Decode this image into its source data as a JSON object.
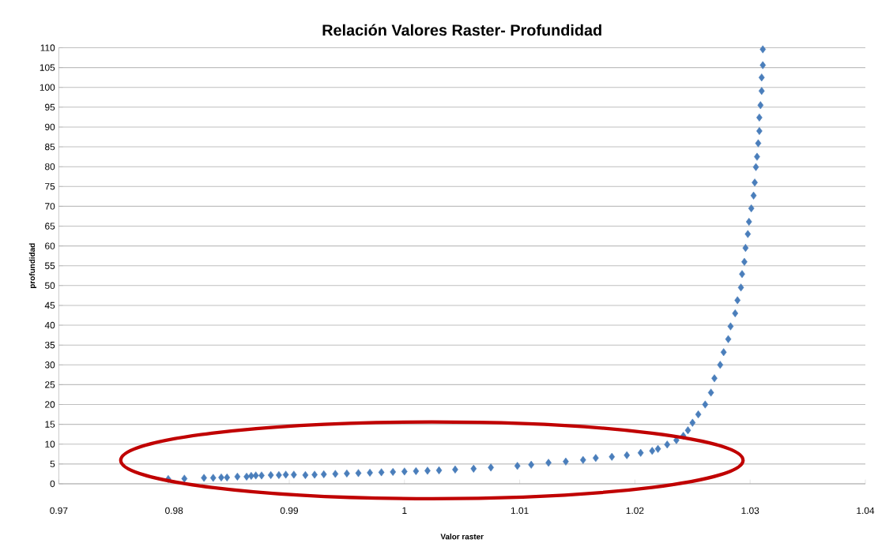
{
  "chart_data": {
    "type": "scatter",
    "title": "Relación Valores Raster- Profundidad",
    "xlabel": "Valor raster",
    "ylabel": "profundidad",
    "x": [
      0.9795,
      0.9809,
      0.9826,
      0.9834,
      0.9841,
      0.9846,
      0.9855,
      0.9863,
      0.9867,
      0.9871,
      0.9876,
      0.9884,
      0.9891,
      0.9897,
      0.9904,
      0.9914,
      0.9922,
      0.993,
      0.994,
      0.995,
      0.996,
      0.997,
      0.998,
      0.999,
      1.0,
      1.001,
      1.002,
      1.003,
      1.0044,
      1.006,
      1.0075,
      1.0098,
      1.011,
      1.0125,
      1.014,
      1.0155,
      1.0166,
      1.018,
      1.0193,
      1.0205,
      1.0215,
      1.022,
      1.0228,
      1.0236,
      1.0242,
      1.0246,
      1.025,
      1.0255,
      1.0261,
      1.0266,
      1.0269,
      1.0274,
      1.0277,
      1.0281,
      1.0283,
      1.0287,
      1.0289,
      1.0292,
      1.0293,
      1.0295,
      1.0296,
      1.0298,
      1.0299,
      1.0301,
      1.0303,
      1.0304,
      1.0305,
      1.0306,
      1.0307,
      1.0308,
      1.0308,
      1.0309,
      1.031,
      1.031,
      1.0311,
      1.0311
    ],
    "values": [
      1.2,
      1.3,
      1.5,
      1.5,
      1.6,
      1.6,
      1.8,
      1.8,
      2.0,
      2.1,
      2.1,
      2.2,
      2.2,
      2.3,
      2.3,
      2.2,
      2.3,
      2.4,
      2.5,
      2.6,
      2.7,
      2.8,
      2.9,
      3.0,
      3.1,
      3.2,
      3.3,
      3.4,
      3.6,
      3.8,
      4.1,
      4.5,
      4.8,
      5.3,
      5.6,
      6.0,
      6.5,
      6.8,
      7.2,
      7.8,
      8.3,
      8.8,
      9.9,
      11.0,
      12.1,
      13.5,
      15.4,
      17.5,
      20.0,
      23.0,
      26.6,
      30.0,
      33.2,
      36.5,
      39.7,
      43.0,
      46.3,
      49.5,
      52.9,
      56.0,
      59.5,
      63.0,
      66.1,
      69.5,
      72.7,
      76.0,
      79.9,
      82.5,
      85.9,
      89.0,
      92.4,
      95.5,
      99.1,
      102.5,
      105.6,
      109.6
    ],
    "color": "#4a7ebb",
    "marker": "diamond",
    "grid": "y",
    "xlim": [
      0.97,
      1.04
    ],
    "xticks": [
      0.97,
      0.98,
      0.99,
      1,
      1.01,
      1.02,
      1.03,
      1.04
    ],
    "ylim": [
      0,
      110
    ],
    "yticks": [
      0,
      5,
      10,
      15,
      20,
      25,
      30,
      35,
      40,
      45,
      50,
      55,
      60,
      65,
      70,
      75,
      80,
      85,
      90,
      95,
      100,
      105,
      110
    ]
  }
}
